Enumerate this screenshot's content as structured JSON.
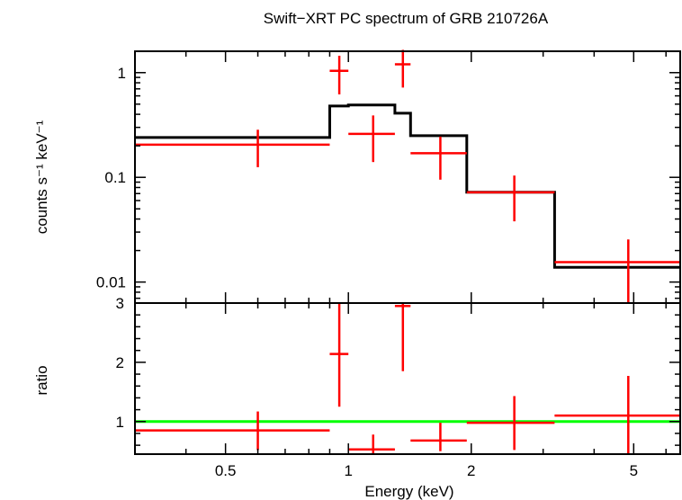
{
  "chart_data": [
    {
      "type": "step-line-with-errorbars",
      "title": "Swift−XRT PC spectrum of GRB 210726A",
      "xlabel": "Energy (keV)",
      "ylabel": "counts s⁻¹ keV⁻¹",
      "xscale": "log",
      "yscale": "log",
      "xlim": [
        0.3,
        6.5
      ],
      "ylim": [
        0.0063,
        1.6
      ],
      "x_ticks": [
        0.5,
        1,
        2,
        5
      ],
      "x_tick_labels": [
        "0.5",
        "1",
        "2",
        "5"
      ],
      "y_ticks": [
        0.01,
        0.1,
        1
      ],
      "y_tick_labels": [
        "0.01",
        "0.1",
        "1"
      ],
      "series": [
        {
          "role": "data",
          "color": "#ff0000",
          "points": [
            {
              "xlo": 0.3,
              "xhi": 0.9,
              "x": 0.6,
              "y": 0.205,
              "ylo": 0.125,
              "yhi": 0.285
            },
            {
              "xlo": 0.9,
              "xhi": 1.0,
              "x": 0.95,
              "y": 1.04,
              "ylo": 0.62,
              "yhi": 1.45
            },
            {
              "xlo": 1.0,
              "xhi": 1.3,
              "x": 1.15,
              "y": 0.26,
              "ylo": 0.14,
              "yhi": 0.39
            },
            {
              "xlo": 1.3,
              "xhi": 1.42,
              "x": 1.36,
              "y": 1.2,
              "ylo": 0.72,
              "yhi": 1.65
            },
            {
              "xlo": 1.42,
              "xhi": 1.95,
              "x": 1.68,
              "y": 0.17,
              "ylo": 0.095,
              "yhi": 0.245
            },
            {
              "xlo": 1.95,
              "xhi": 3.2,
              "x": 2.55,
              "y": 0.072,
              "ylo": 0.038,
              "yhi": 0.104
            },
            {
              "xlo": 3.2,
              "xhi": 6.5,
              "x": 4.85,
              "y": 0.0155,
              "ylo": 0.0063,
              "yhi": 0.0255
            }
          ]
        },
        {
          "role": "model",
          "color": "#000000",
          "steps": [
            {
              "xlo": 0.3,
              "xhi": 0.9,
              "y": 0.24
            },
            {
              "xlo": 0.9,
              "xhi": 1.0,
              "y": 0.48
            },
            {
              "xlo": 1.0,
              "xhi": 1.3,
              "y": 0.49
            },
            {
              "xlo": 1.3,
              "xhi": 1.42,
              "y": 0.41
            },
            {
              "xlo": 1.42,
              "xhi": 1.95,
              "y": 0.25
            },
            {
              "xlo": 1.95,
              "xhi": 3.2,
              "y": 0.072
            },
            {
              "xlo": 3.2,
              "xhi": 6.5,
              "y": 0.0138
            }
          ]
        }
      ]
    },
    {
      "type": "scatter-with-errorbars",
      "xlabel": "Energy (keV)",
      "ylabel": "ratio",
      "xscale": "log",
      "yscale": "linear",
      "xlim": [
        0.3,
        6.5
      ],
      "ylim": [
        0.45,
        3.0
      ],
      "x_ticks": [
        0.5,
        1,
        2,
        5
      ],
      "x_tick_labels": [
        "0.5",
        "1",
        "2",
        "5"
      ],
      "y_ticks": [
        1,
        2,
        3
      ],
      "y_tick_labels": [
        "1",
        "2",
        "3"
      ],
      "reference_line": {
        "y": 1,
        "color": "#00ff00"
      },
      "series": [
        {
          "role": "ratio",
          "color": "#ff0000",
          "points": [
            {
              "xlo": 0.3,
              "xhi": 0.9,
              "x": 0.6,
              "y": 0.85,
              "ylo": 0.52,
              "yhi": 1.17
            },
            {
              "xlo": 0.9,
              "xhi": 1.0,
              "x": 0.95,
              "y": 2.14,
              "ylo": 1.25,
              "yhi": 3.0
            },
            {
              "xlo": 1.0,
              "xhi": 1.3,
              "x": 1.15,
              "y": 0.53,
              "ylo": 0.45,
              "yhi": 0.78
            },
            {
              "xlo": 1.3,
              "xhi": 1.42,
              "x": 1.36,
              "y": 2.95,
              "ylo": 1.85,
              "yhi": 3.0
            },
            {
              "xlo": 1.42,
              "xhi": 1.95,
              "x": 1.68,
              "y": 0.68,
              "ylo": 0.5,
              "yhi": 0.98
            },
            {
              "xlo": 1.95,
              "xhi": 3.2,
              "x": 2.55,
              "y": 0.98,
              "ylo": 0.52,
              "yhi": 1.43
            },
            {
              "xlo": 3.2,
              "xhi": 6.5,
              "x": 4.85,
              "y": 1.1,
              "ylo": 0.45,
              "yhi": 1.77
            }
          ]
        }
      ]
    }
  ]
}
